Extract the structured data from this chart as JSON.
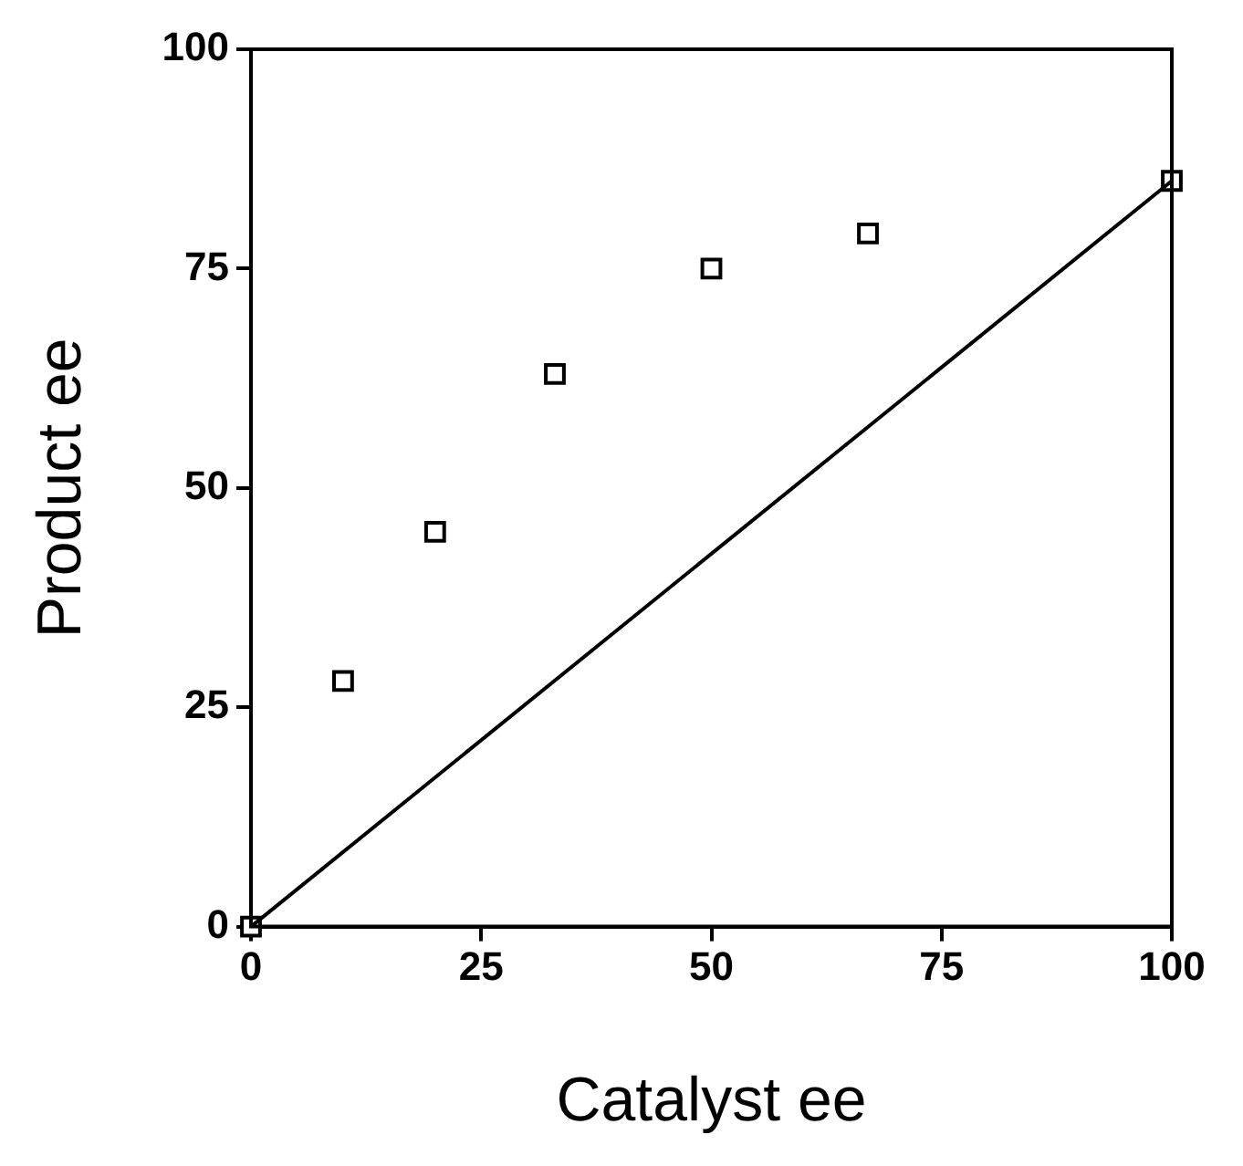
{
  "chart_data": {
    "type": "scatter",
    "xlabel": "Catalyst ee",
    "ylabel": "Product ee",
    "xlim": [
      0,
      100
    ],
    "ylim": [
      0,
      100
    ],
    "xticks": [
      0,
      25,
      50,
      75,
      100
    ],
    "yticks": [
      0,
      25,
      50,
      75,
      100
    ],
    "grid": false,
    "legend": false,
    "series": [
      {
        "marker": "square",
        "color": "#000000",
        "x": [
          0,
          10,
          20,
          33,
          50,
          67,
          100
        ],
        "values": [
          0,
          28,
          45,
          63,
          75,
          79,
          85
        ]
      },
      {
        "type": "line",
        "marker": "none",
        "line_style": "solid",
        "color": "#000000",
        "x": [
          0,
          100
        ],
        "values": [
          0,
          85
        ]
      }
    ]
  }
}
